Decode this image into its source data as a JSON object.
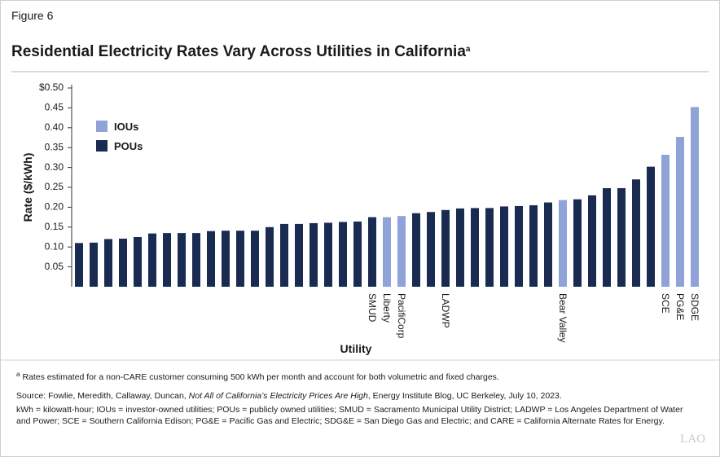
{
  "figure_label": "Figure 6",
  "chart_data": {
    "type": "bar",
    "title": "Residential Electricity Rates Vary Across Utilities in California",
    "title_note": "a",
    "x_label": "Utility",
    "y_label": "Rate ($/kWh)",
    "categories": [
      null,
      null,
      null,
      null,
      null,
      null,
      null,
      null,
      null,
      null,
      null,
      null,
      null,
      null,
      null,
      null,
      null,
      null,
      null,
      null,
      "SMUD",
      "Liberty",
      "PacifiCorp",
      null,
      null,
      "LADWP",
      null,
      null,
      null,
      null,
      null,
      null,
      null,
      "Bear Valley",
      null,
      null,
      null,
      null,
      null,
      null,
      "SCE",
      "PG&E",
      "SDGE"
    ],
    "series": [
      {
        "name": "IOUs",
        "color": "#8fa3d9",
        "values": [
          null,
          null,
          null,
          null,
          null,
          null,
          null,
          null,
          null,
          null,
          null,
          null,
          null,
          null,
          null,
          null,
          null,
          null,
          null,
          null,
          null,
          0.175,
          0.178,
          null,
          null,
          null,
          null,
          null,
          null,
          null,
          null,
          null,
          null,
          0.218,
          null,
          null,
          null,
          null,
          null,
          null,
          0.332,
          0.377,
          0.452
        ]
      },
      {
        "name": "POUs",
        "color": "#1a2b52",
        "values": [
          0.11,
          0.111,
          0.12,
          0.121,
          0.125,
          0.134,
          0.135,
          0.135,
          0.135,
          0.14,
          0.141,
          0.141,
          0.141,
          0.15,
          0.158,
          0.158,
          0.16,
          0.161,
          0.163,
          0.164,
          0.175,
          null,
          null,
          0.185,
          0.188,
          0.193,
          0.197,
          0.198,
          0.198,
          0.202,
          0.203,
          0.205,
          0.212,
          null,
          0.22,
          0.23,
          0.248,
          0.248,
          0.27,
          0.302,
          null,
          null,
          null
        ]
      }
    ],
    "ylim": [
      0,
      0.5
    ],
    "yticks": [
      0.05,
      {
        "value": 0.1,
        "label": "0.10"
      },
      0.15,
      {
        "value": 0.2,
        "label": "0.20"
      },
      0.25,
      {
        "value": 0.3,
        "label": "0.30"
      },
      0.35,
      {
        "value": 0.4,
        "label": "0.40"
      },
      0.45,
      {
        "value": 0.5,
        "label": "$0.50"
      }
    ],
    "legend": "top-left"
  },
  "footnote": {
    "marker": "a",
    "text": "Rates estimated for a non-CARE customer consuming 500 kWh per month and account for both volumetric and fixed charges."
  },
  "source": {
    "before": "Source: Fowlie, Meredith, Callaway, Duncan, ",
    "italic": "Not All of California’s Electricity Prices Are High",
    "after": ", Energy Institute Blog, UC Berkeley, July 10, 2023."
  },
  "abbreviations": [
    "kWh = kilowatt-hour; IOUs = investor-owned utilities; POUs = publicly owned utilities; SMUD = Sacramento Municipal Utility District; LADWP = Los Angeles Department of Water",
    "and Power; SCE = Southern California Edison; PG&E = Pacific Gas and Electric; SDG&E = San Diego Gas and Electric; and CARE = California Alternate Rates for Energy."
  ],
  "logo": "LAO"
}
